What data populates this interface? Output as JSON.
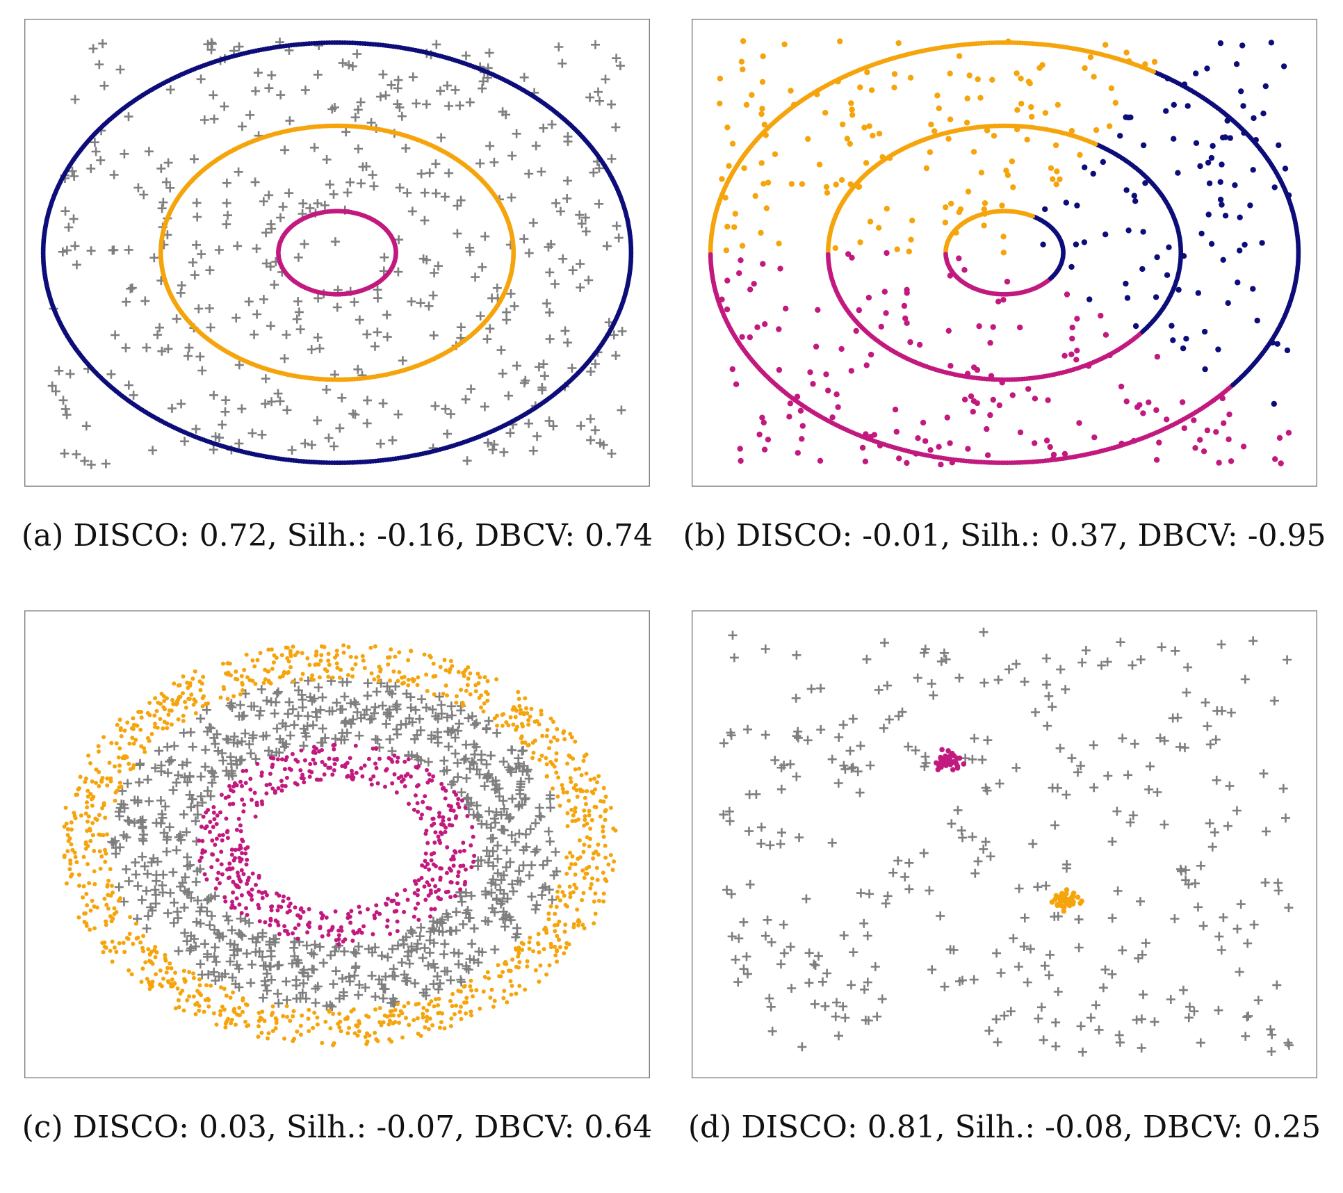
{
  "figure": {
    "captions": [
      "(a) DISCO: 0.72, Silh.: -0.16, DBCV: 0.74",
      "(b) DISCO: -0.01, Silh.: 0.37, DBCV: -0.95",
      "(c) DISCO: 0.03, Silh.: -0.07, DBCV: 0.64",
      "(d) DISCO: 0.81, Silh.: -0.08, DBCV: 0.25"
    ]
  },
  "colors": {
    "navy": "#0d0d7a",
    "orange": "#f5a40c",
    "magenta": "#c2197f",
    "noise": "#7f7f7f"
  },
  "chart_data": [
    {
      "type": "scatter",
      "title": "(a) DISCO: 0.72, Silh.: -0.16, DBCV: 0.74",
      "xlim": [
        -1.05,
        1.05
      ],
      "ylim": [
        -1.05,
        1.05
      ],
      "series": [
        {
          "name": "outer ring",
          "marker": "dot",
          "color": "navy",
          "shape": "ring",
          "cx": 0,
          "cy": 0,
          "rx": 1.0,
          "ry": 0.96
        },
        {
          "name": "middle ring",
          "marker": "dot",
          "color": "orange",
          "shape": "ring",
          "cx": 0,
          "cy": 0,
          "rx": 0.6,
          "ry": 0.58
        },
        {
          "name": "inner ring",
          "marker": "dot",
          "color": "magenta",
          "shape": "ring",
          "cx": 0,
          "cy": 0,
          "rx": 0.2,
          "ry": 0.19
        },
        {
          "name": "noise",
          "marker": "plus",
          "color": "noise",
          "shape": "uniform",
          "count": 440
        }
      ]
    },
    {
      "type": "scatter",
      "title": "(b) DISCO: -0.01, Silh.: 0.37, DBCV: -0.95",
      "xlim": [
        -1.05,
        1.05
      ],
      "ylim": [
        -1.05,
        1.05
      ],
      "series": [
        {
          "name": "cluster 1 (upper-left)",
          "marker": "dot",
          "color": "orange",
          "angle_range_deg": [
            58,
            180
          ]
        },
        {
          "name": "cluster 2 (right)",
          "marker": "dot",
          "color": "navy",
          "angle_range_deg": [
            -38,
            58
          ]
        },
        {
          "name": "cluster 3 (lower)",
          "marker": "dot",
          "color": "magenta",
          "angle_range_deg": [
            -180,
            -38
          ]
        },
        {
          "name": "rings",
          "shape": "rings",
          "rx": [
            1.0,
            0.6,
            0.2
          ],
          "ry": [
            0.96,
            0.58,
            0.19
          ]
        },
        {
          "name": "background points",
          "marker": "dot",
          "shape": "uniform",
          "count": 420
        }
      ]
    },
    {
      "type": "scatter",
      "title": "(c) DISCO: 0.03, Silh.: -0.07, DBCV: 0.64",
      "xlim": [
        -1.05,
        1.05
      ],
      "ylim": [
        -1.05,
        1.05
      ],
      "series": [
        {
          "name": "outer band",
          "marker": "dot",
          "color": "orange",
          "shape": "annulus",
          "r_range": [
            0.82,
            1.0
          ],
          "count": 1050
        },
        {
          "name": "middle band (noise)",
          "marker": "plus",
          "color": "noise",
          "shape": "annulus",
          "r_range": [
            0.5,
            0.82
          ],
          "count": 780
        },
        {
          "name": "inner band",
          "marker": "dot",
          "color": "magenta",
          "shape": "annulus",
          "r_range": [
            0.32,
            0.5
          ],
          "count": 520
        }
      ]
    },
    {
      "type": "scatter",
      "title": "(d) DISCO: 0.81, Silh.: -0.08, DBCV: 0.25",
      "xlim": [
        -1.05,
        1.05
      ],
      "ylim": [
        -1.05,
        1.05
      ],
      "series": [
        {
          "name": "cluster 1",
          "marker": "dot",
          "color": "magenta",
          "shape": "blob",
          "center": [
            -0.19,
            0.38
          ],
          "spread": 0.025,
          "count": 40
        },
        {
          "name": "cluster 2",
          "marker": "dot",
          "color": "orange",
          "shape": "blob",
          "center": [
            0.21,
            -0.26
          ],
          "spread": 0.025,
          "count": 40
        },
        {
          "name": "noise",
          "marker": "plus",
          "color": "noise",
          "shape": "uniform",
          "count": 330
        }
      ]
    }
  ]
}
